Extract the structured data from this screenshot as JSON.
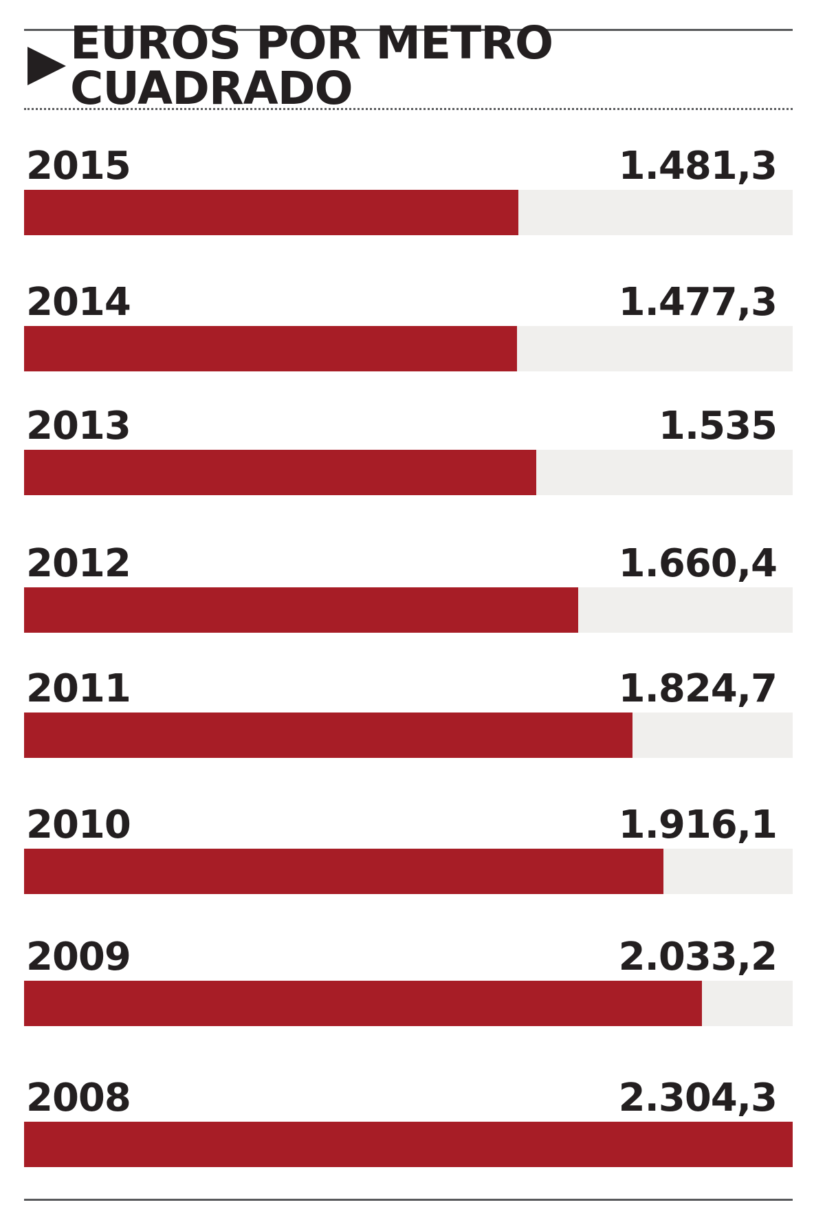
{
  "title": "EUROS POR METRO CUADRADO",
  "colors": {
    "bar": "#a71d26",
    "track": "#f0efed",
    "text": "#231f20"
  },
  "chart_data": {
    "type": "bar",
    "orientation": "horizontal",
    "title": "EUROS POR METRO CUADRADO",
    "categories": [
      "2015",
      "2014",
      "2013",
      "2012",
      "2011",
      "2010",
      "2009",
      "2008"
    ],
    "values": [
      1481.3,
      1477.3,
      1535,
      1660.4,
      1824.7,
      1916.1,
      2033.2,
      2304.3
    ],
    "value_labels": [
      "1.481,3",
      "1.477,3",
      "1.535",
      "1.660,4",
      "1.824,7",
      "1.916,1",
      "2.033,2",
      "2.304,3"
    ],
    "grid": false
  }
}
